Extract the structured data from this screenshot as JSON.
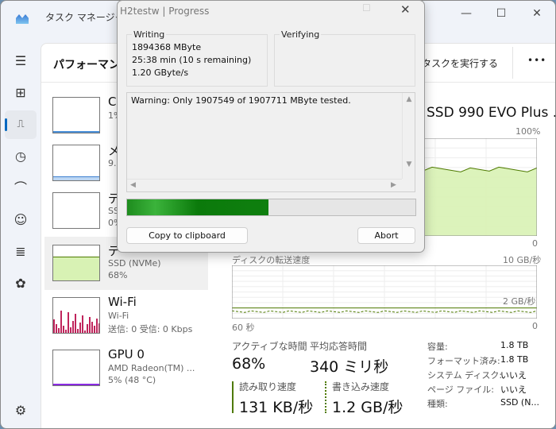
{
  "taskmanager": {
    "title": "タスク マネージャー",
    "header": "パフォーマンス",
    "run_new_task": "しいタスクを実行する",
    "more": "•••",
    "list": [
      {
        "name": "C",
        "sub": "1%",
        "sub2": ""
      },
      {
        "name": "メ",
        "sub": "9.4",
        "sub2": ""
      },
      {
        "name": "デ",
        "sub": "SS",
        "sub2": "0%"
      },
      {
        "name": "デ",
        "sub": "SSD (NVMe)",
        "sub2": "68%"
      },
      {
        "name": "Wi-Fi",
        "sub": "Wi-Fi",
        "sub2": "送信: 0 受信: 0 Kbps"
      },
      {
        "name": "GPU 0",
        "sub": "AMD Radeon(TM) ...",
        "sub2": "5%  (48 °C)"
      }
    ],
    "detail": {
      "title": "SSD 990 EVO Plus ...",
      "chart1_max": "100%",
      "chart1_min": "0",
      "active_level_percent": 68,
      "chart2_label": "ディスクの転送速度",
      "chart2_max": "10 GB/秒",
      "chart2_mid": "2 GB/秒",
      "chart2_time": "60 秒",
      "chart2_min": "0",
      "active_time_label": "アクティブな時間",
      "active_time": "68%",
      "avg_response_label": "平均応答時間",
      "avg_response": "340 ミリ秒",
      "read_label": "読み取り速度",
      "read": "131 KB/秒",
      "write_label": "書き込み速度",
      "write": "1.2 GB/秒",
      "props": [
        {
          "k": "容量:",
          "v": "1.8 TB"
        },
        {
          "k": "フォーマット済み:",
          "v": "1.8 TB"
        },
        {
          "k": "システム ディスク:",
          "v": "いいえ"
        },
        {
          "k": "ページ ファイル:",
          "v": "いいえ"
        },
        {
          "k": "種類:",
          "v": "SSD (N..."
        }
      ]
    }
  },
  "dialog": {
    "title": "H2testw | Progress",
    "writing_label": "Writing",
    "writing_lines": [
      "1894368 MByte",
      "25:38 min (10 s remaining)",
      "1.20 GByte/s"
    ],
    "verifying_label": "Verifying",
    "log": "Warning: Only 1907549 of 1907711 MByte tested.",
    "progress_percent": 49,
    "copy_button": "Copy to clipboard",
    "abort_button": "Abort"
  },
  "colors": {
    "accent": "#0067c0",
    "disk": "#4e7a00",
    "disk_fill": "#d8f2b4",
    "progress": "#1a9c1a",
    "wifi": "#c0245c",
    "gpu": "#8a2be2"
  }
}
